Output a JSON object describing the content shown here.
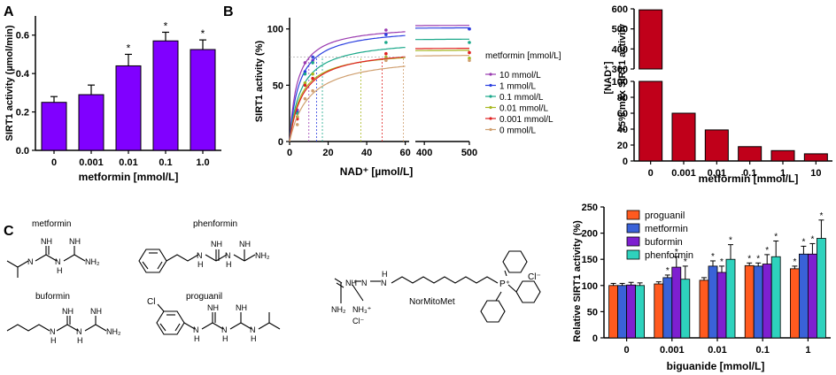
{
  "panels": {
    "A": "A",
    "B": "B",
    "C": "C"
  },
  "colors": {
    "purple": "#8000ff",
    "darkred": "#c0001a",
    "orange": "#ff5a1f",
    "blue": "#3a62d8",
    "violet": "#7e1fd0",
    "teal": "#2ed2bd",
    "c10": "#9a3bb0",
    "c1": "#2a3fe0",
    "c01": "#1aa88a",
    "c001": "#a8b820",
    "c0001": "#e02020",
    "c0": "#d0a070"
  },
  "chart_data": [
    {
      "id": "A",
      "type": "bar",
      "categories": [
        "0",
        "0.001",
        "0.01",
        "0.1",
        "1.0"
      ],
      "values": [
        0.25,
        0.29,
        0.44,
        0.57,
        0.525
      ],
      "errors": [
        0.03,
        0.05,
        0.06,
        0.045,
        0.05
      ],
      "significance": [
        "",
        "",
        "*",
        "*",
        "*"
      ],
      "xlabel": "metformin [mmol/L]",
      "ylabel": "SIRT1 activity (µmol/min)",
      "ylim": [
        0,
        0.7
      ],
      "yticks": [
        "0.0",
        "0.2",
        "0.4",
        "0.6"
      ],
      "sig_mark": "*"
    },
    {
      "id": "B-left",
      "type": "line",
      "xlabel": "NAD⁺ [µmol/L]",
      "ylabel": "SIRT1 activity (%)",
      "xticks_1": [
        "0",
        "20",
        "40",
        "60"
      ],
      "xticks_2": [
        "400",
        "500"
      ],
      "yticks": [
        "0",
        "50",
        "100"
      ],
      "ylim": [
        0,
        110
      ],
      "legend_title": "metformin [mmol/L]",
      "series": [
        {
          "name": "10 mmol/L",
          "vmax": 104,
          "km": 4.0,
          "km_line": 10,
          "x": [
            4,
            8,
            12,
            50,
            500
          ],
          "y": [
            28,
            70,
            72,
            99,
            100
          ]
        },
        {
          "name": "1 mmol/L",
          "vmax": 102,
          "km": 5.0,
          "km_line": 14,
          "x": [
            4,
            8,
            12,
            50,
            500
          ],
          "y": [
            26,
            62,
            75,
            95,
            100
          ]
        },
        {
          "name": "0.1 mmol/L",
          "vmax": 92,
          "km": 6.0,
          "km_line": 17,
          "x": [
            4,
            8,
            12,
            50,
            500
          ],
          "y": [
            25,
            60,
            70,
            88,
            88
          ]
        },
        {
          "name": "0.01 mmol/L",
          "vmax": 82,
          "km": 6.0,
          "km_line": 37,
          "x": [
            4,
            8,
            12,
            50,
            500
          ],
          "y": [
            22,
            52,
            60,
            75,
            74
          ]
        },
        {
          "name": "0.001 mmol/L",
          "vmax": 84,
          "km": 7.0,
          "km_line": 48,
          "x": [
            4,
            8,
            12,
            50,
            500
          ],
          "y": [
            20,
            50,
            56,
            78,
            79
          ]
        },
        {
          "name": "0 mmol/L",
          "vmax": 78,
          "km": 10.0,
          "km_line": 59,
          "x": [
            4,
            8,
            12,
            50,
            500
          ],
          "y": [
            15,
            38,
            45,
            72,
            72
          ]
        }
      ]
    },
    {
      "id": "B-right",
      "type": "bar",
      "categories": [
        "0",
        "0.001",
        "0.01",
        "0.1",
        "1",
        "10"
      ],
      "values": [
        595,
        60,
        39,
        18,
        13,
        9
      ],
      "xlabel": "metformin [mmol/L]",
      "ylabel_line1": "[NAD⁺]",
      "ylabel_line2": "75% máx SIRT1 activity",
      "yticks_upper": [
        "300",
        "400",
        "500",
        "600"
      ],
      "yticks_lower": [
        "0",
        "20",
        "40",
        "60",
        "80",
        "100"
      ],
      "ybreak": [
        100,
        300
      ]
    },
    {
      "id": "C-right",
      "type": "bar",
      "categories": [
        "0",
        "0.001",
        "0.01",
        "0.1",
        "1"
      ],
      "series": [
        {
          "name": "proguanil",
          "values": [
            100,
            103,
            110,
            138,
            132
          ],
          "errors": [
            4,
            4,
            5,
            5,
            5
          ]
        },
        {
          "name": "metformin",
          "values": [
            100,
            115,
            137,
            137,
            160
          ],
          "errors": [
            4,
            5,
            10,
            6,
            15
          ]
        },
        {
          "name": "buformin",
          "values": [
            101,
            135,
            125,
            141,
            160
          ],
          "errors": [
            5,
            20,
            12,
            18,
            20
          ]
        },
        {
          "name": "phenformin",
          "values": [
            100,
            112,
            150,
            155,
            190
          ],
          "errors": [
            5,
            25,
            28,
            30,
            35
          ]
        }
      ],
      "significance": [
        [
          "",
          "",
          "",
          ""
        ],
        [
          "",
          "*",
          "*",
          "*"
        ],
        [
          "",
          "*",
          "*",
          "*"
        ],
        [
          "*",
          "*",
          "*",
          "*"
        ],
        [
          "*",
          "*",
          "*",
          "*"
        ]
      ],
      "xlabel": "biguanide [mmol/L]",
      "ylabel": "Relative SIRT1 activity (%)",
      "ylim": [
        0,
        250
      ],
      "yticks": [
        "0",
        "50",
        "100",
        "150",
        "200",
        "250"
      ],
      "sig_mark": "*"
    }
  ],
  "structures": {
    "metformin": "metformin",
    "phenformin": "phenformin",
    "buformin": "buformin",
    "proguanil": "proguanil",
    "norMitoMet": "NorMitoMet",
    "NH": "NH",
    "N": "N",
    "H": "H",
    "NH2": "NH₂",
    "NH3plus": "NH₃⁺",
    "Clminus": "Cl⁻",
    "Cl": "Cl",
    "Pplus": "P⁺"
  }
}
